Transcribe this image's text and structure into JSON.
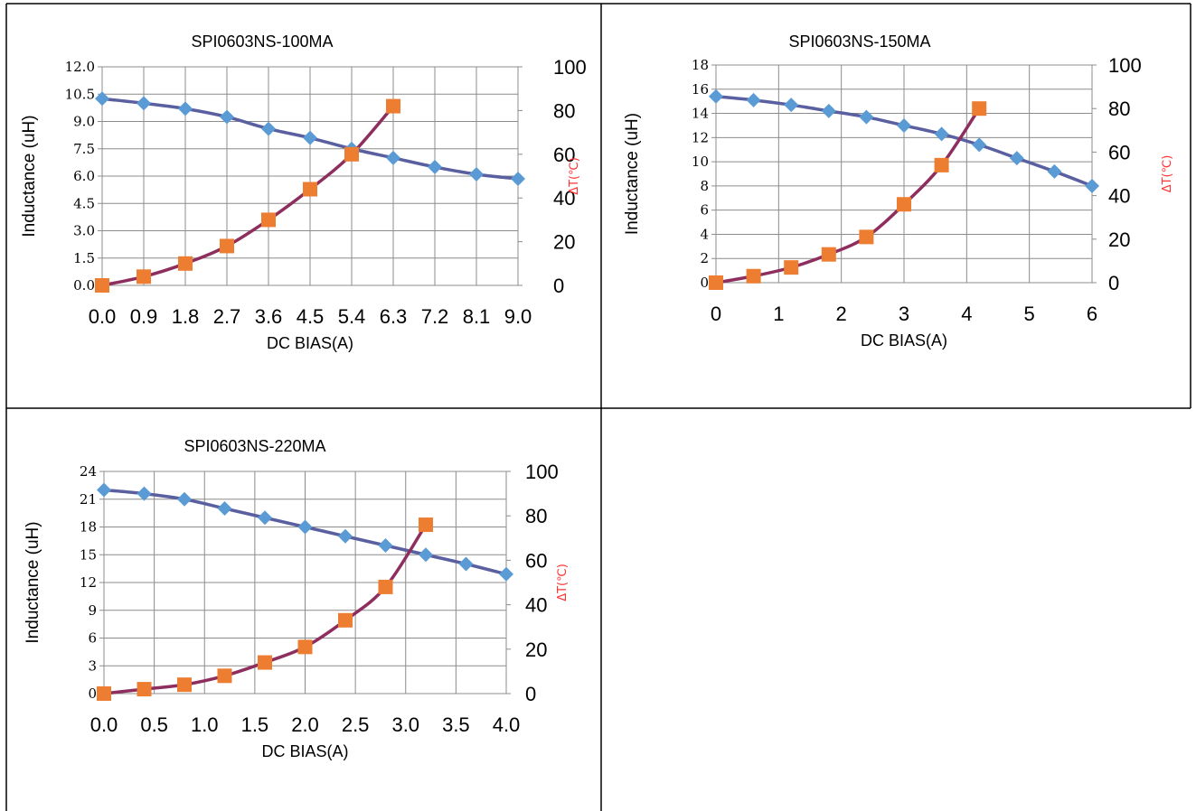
{
  "chart_data": [
    {
      "type": "line",
      "title": "SPI0603NS-100MA",
      "xlabel": "DC BIAS(A)",
      "ylabel": "Inductance (uH)",
      "y2label": "ΔT(℃)",
      "xlim": [
        0,
        9
      ],
      "ylim": [
        0,
        12
      ],
      "y2lim": [
        0,
        100
      ],
      "x_ticks": [
        "0.0",
        "0.9",
        "1.8",
        "2.7",
        "3.6",
        "4.5",
        "5.4",
        "6.3",
        "7.2",
        "8.1",
        "9.0"
      ],
      "y_ticks": [
        "0.0",
        "1.5",
        "3.0",
        "4.5",
        "6.0",
        "7.5",
        "9.0",
        "10.5",
        "12.0"
      ],
      "y2_ticks": [
        "0",
        "20",
        "40",
        "60",
        "80",
        "100"
      ],
      "grid": true,
      "series": [
        {
          "axis": "left",
          "marker": "diamond",
          "color": "#5b9bd5",
          "line_color": "#5a5fa0",
          "x": [
            0,
            0.9,
            1.8,
            2.7,
            3.6,
            4.5,
            5.4,
            6.3,
            7.2,
            8.1,
            9.0
          ],
          "values": [
            10.25,
            10.0,
            9.7,
            9.25,
            8.6,
            8.1,
            7.5,
            7.0,
            6.5,
            6.1,
            5.85
          ]
        },
        {
          "axis": "right",
          "marker": "square",
          "color": "#ed7d31",
          "line_color": "#8e2e5e",
          "x": [
            0,
            0.9,
            1.8,
            2.7,
            3.6,
            4.5,
            5.4,
            6.3
          ],
          "values": [
            0,
            4,
            10,
            18,
            30,
            44,
            60,
            82
          ]
        }
      ]
    },
    {
      "type": "line",
      "title": "SPI0603NS-150MA",
      "xlabel": "DC BIAS(A)",
      "ylabel": "Inductance (uH)",
      "y2label": "ΔT(℃)",
      "xlim": [
        0,
        6
      ],
      "ylim": [
        0,
        18
      ],
      "y2lim": [
        0,
        100
      ],
      "x_ticks": [
        "0",
        "1",
        "2",
        "3",
        "4",
        "5",
        "6"
      ],
      "y_ticks": [
        "0",
        "2",
        "4",
        "6",
        "8",
        "10",
        "12",
        "14",
        "16",
        "18"
      ],
      "y2_ticks": [
        "0",
        "20",
        "40",
        "60",
        "80",
        "100"
      ],
      "grid": true,
      "series": [
        {
          "axis": "left",
          "marker": "diamond",
          "color": "#5b9bd5",
          "line_color": "#5a5fa0",
          "x": [
            0,
            0.6,
            1.2,
            1.8,
            2.4,
            3.0,
            3.6,
            4.2,
            4.8,
            5.4,
            6.0
          ],
          "values": [
            15.4,
            15.1,
            14.7,
            14.2,
            13.7,
            13.0,
            12.3,
            11.4,
            10.3,
            9.2,
            8.0
          ]
        },
        {
          "axis": "right",
          "marker": "square",
          "color": "#ed7d31",
          "line_color": "#8e2e5e",
          "x": [
            0,
            0.6,
            1.2,
            1.8,
            2.4,
            3.0,
            3.6,
            4.2
          ],
          "values": [
            0,
            3,
            7,
            13,
            21,
            36,
            54,
            80
          ]
        }
      ]
    },
    {
      "type": "line",
      "title": "SPI0603NS-220MA",
      "xlabel": "DC BIAS(A)",
      "ylabel": "Inductance (uH)",
      "y2label": "ΔT(℃)",
      "xlim": [
        0,
        4
      ],
      "ylim": [
        0,
        24
      ],
      "y2lim": [
        0,
        100
      ],
      "x_ticks": [
        "0.0",
        "0.5",
        "1.0",
        "1.5",
        "2.0",
        "2.5",
        "3.0",
        "3.5",
        "4.0"
      ],
      "y_ticks": [
        "0",
        "3",
        "6",
        "9",
        "12",
        "15",
        "18",
        "21",
        "24"
      ],
      "y2_ticks": [
        "0",
        "20",
        "40",
        "60",
        "80",
        "100"
      ],
      "grid": true,
      "series": [
        {
          "axis": "left",
          "marker": "diamond",
          "color": "#5b9bd5",
          "line_color": "#5a5fa0",
          "x": [
            0,
            0.4,
            0.8,
            1.2,
            1.6,
            2.0,
            2.4,
            2.8,
            3.2,
            3.6,
            4.0
          ],
          "values": [
            22.0,
            21.6,
            21.0,
            20.0,
            19.0,
            18.0,
            17.0,
            16.0,
            15.0,
            14.0,
            12.9
          ]
        },
        {
          "axis": "right",
          "marker": "square",
          "color": "#ed7d31",
          "line_color": "#8e2e5e",
          "x": [
            0,
            0.4,
            0.8,
            1.2,
            1.6,
            2.0,
            2.4,
            2.8,
            3.2
          ],
          "values": [
            0,
            2,
            4,
            8,
            14,
            21,
            33,
            48,
            76
          ]
        }
      ]
    }
  ]
}
